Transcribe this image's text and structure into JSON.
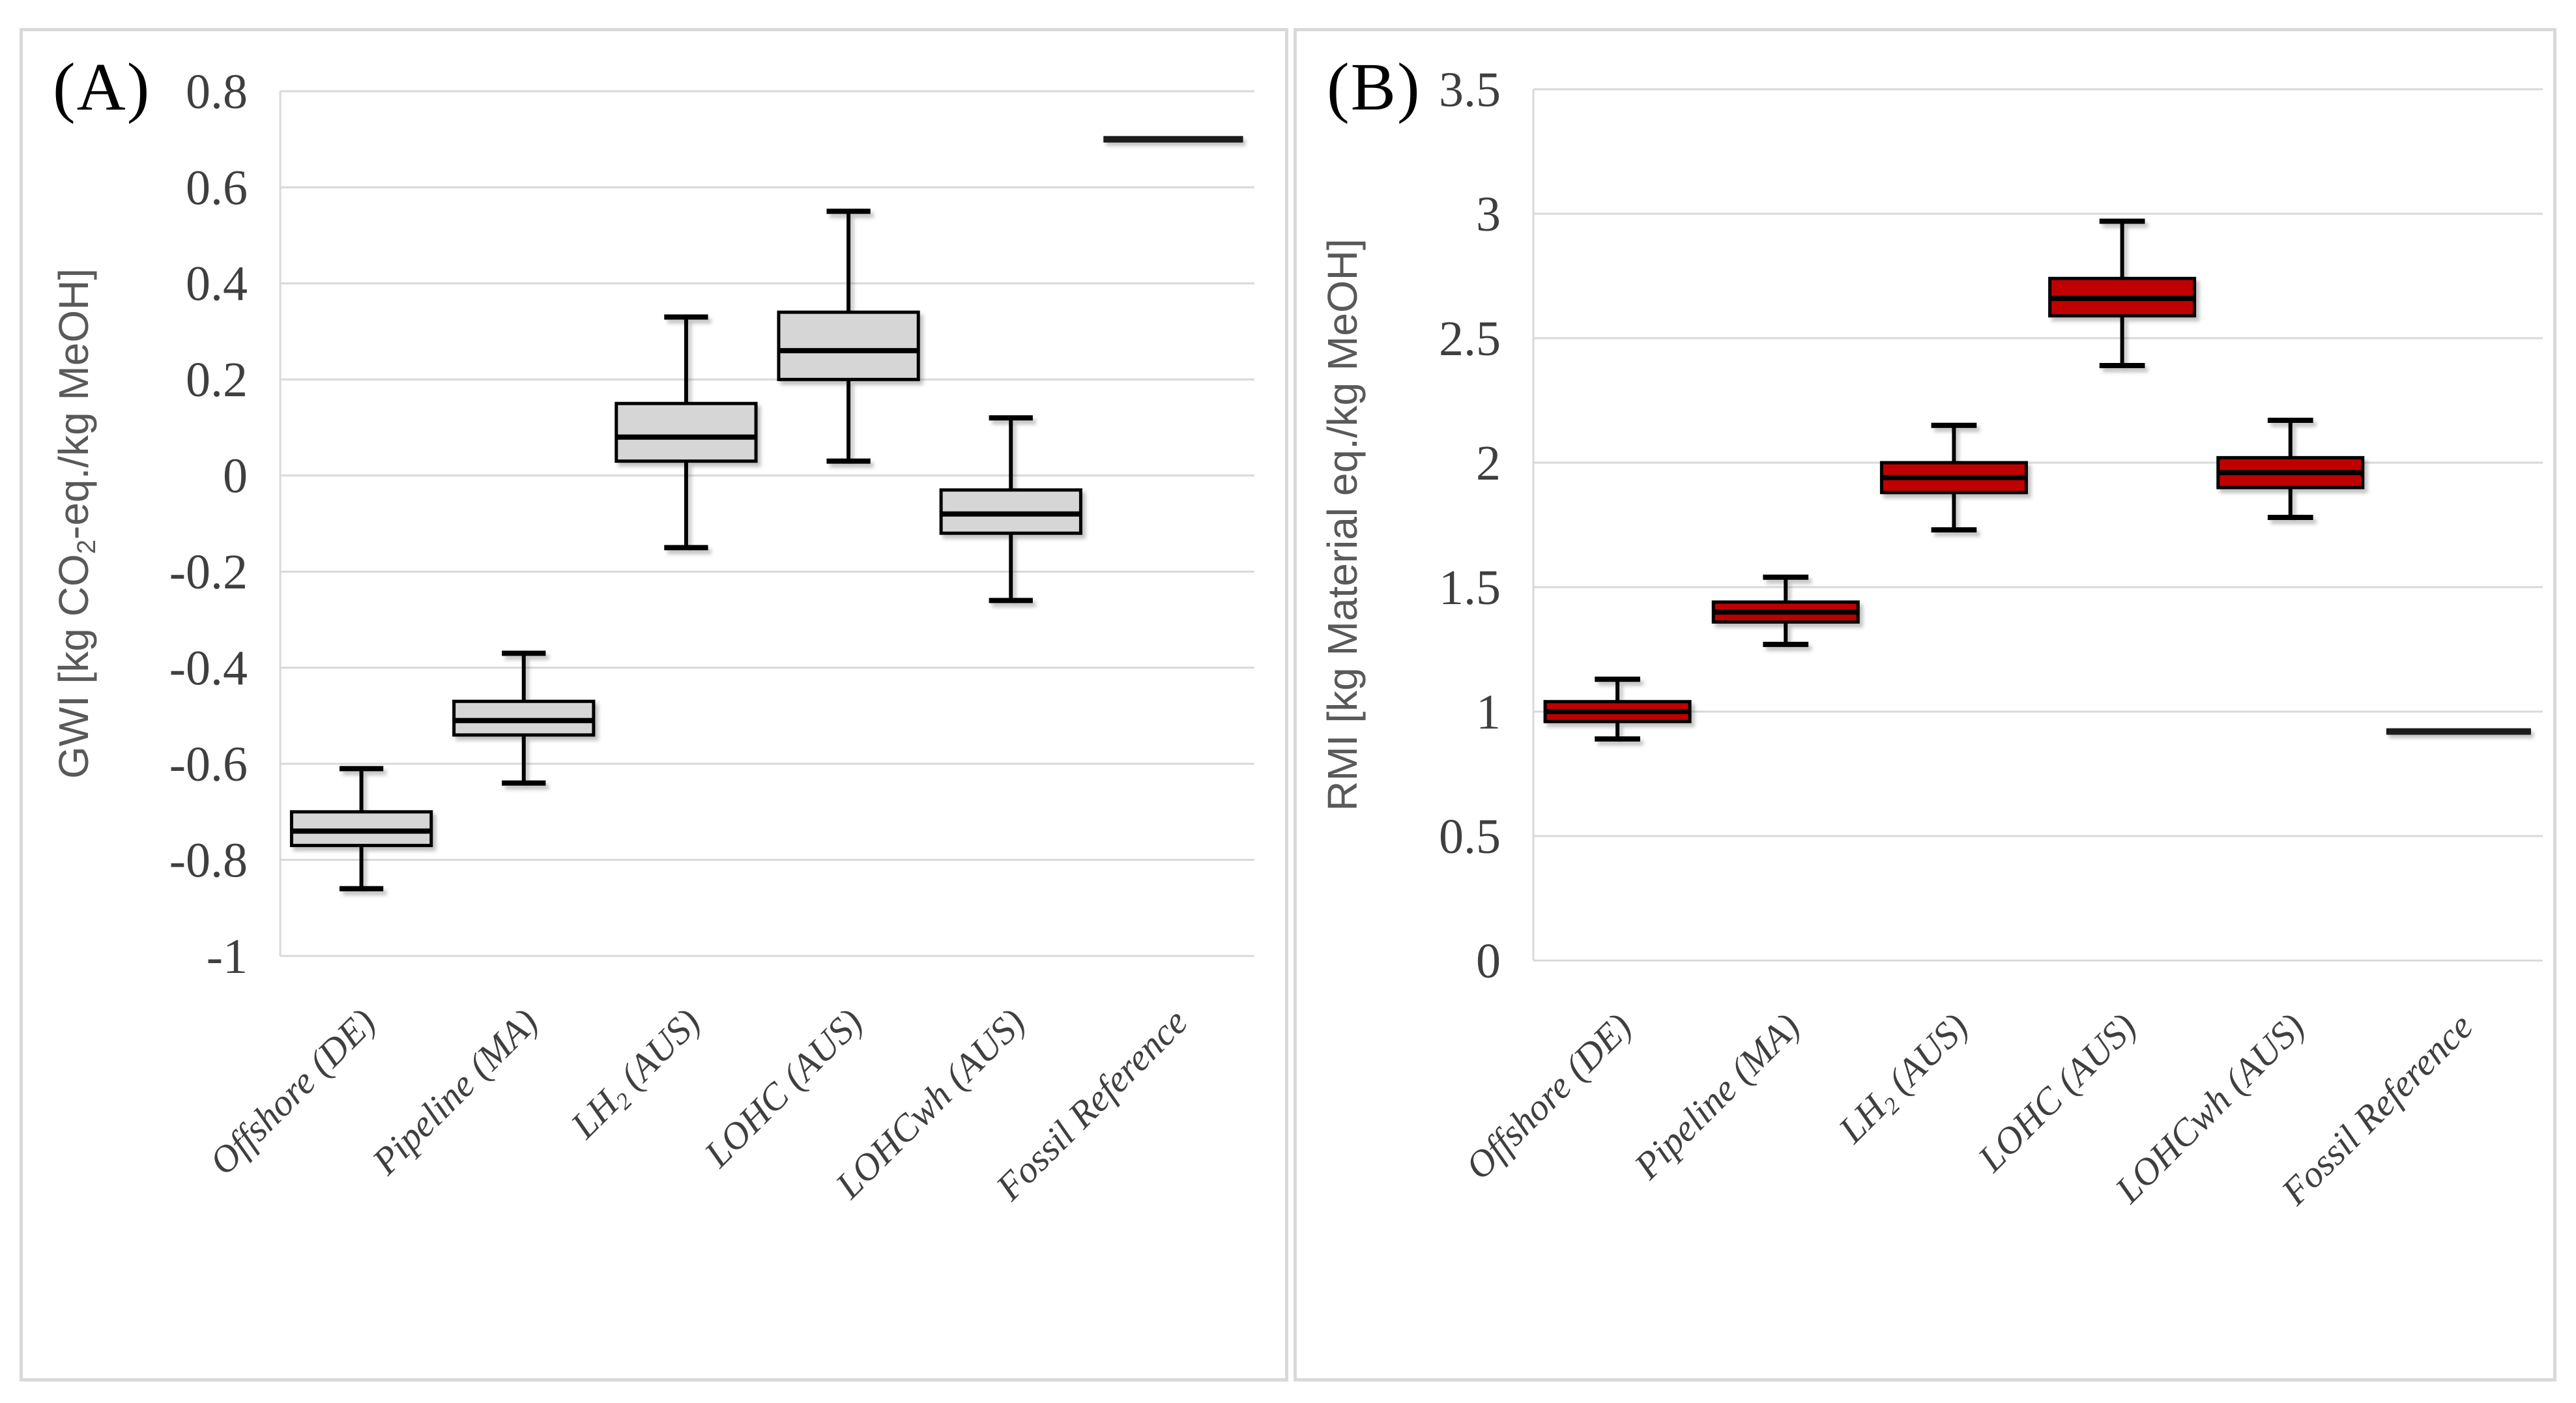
{
  "colors": {
    "background": "#ffffff",
    "panel_border": "#d9d9d9",
    "gridline": "#d9d9d9",
    "box_border": "#000000",
    "whisker": "#000000",
    "tick_text": "#3f3f3f",
    "axis_title_text": "#595959",
    "reference_line": "#1c1c1c",
    "panel_label_text": "#000000"
  },
  "chart_data": [
    {
      "type": "box",
      "panel_label": "(A)",
      "ylabel": "GWI [kg CO₂-eq./kg MeOH]",
      "ylim": [
        -1,
        0.8
      ],
      "ytick_step": 0.2,
      "ytick_labels": [
        "0.8",
        "0.6",
        "0.4",
        "0.2",
        "0",
        "-0.2",
        "-0.4",
        "-0.6",
        "-0.8",
        "-1"
      ],
      "grid": true,
      "legend": "none",
      "box_fill": "#d6d6d6",
      "categories": [
        "Offshore (DE)",
        "Pipeline (MA)",
        "LH₂ (AUS)",
        "LOHC (AUS)",
        "LOHCwh (AUS)",
        "Fossil Reference"
      ],
      "boxes": [
        {
          "category": "Offshore (DE)",
          "whisker_low": -0.86,
          "q1": -0.77,
          "median": -0.74,
          "q3": -0.7,
          "whisker_high": -0.61
        },
        {
          "category": "Pipeline (MA)",
          "whisker_low": -0.64,
          "q1": -0.54,
          "median": -0.51,
          "q3": -0.47,
          "whisker_high": -0.37
        },
        {
          "category": "LH₂ (AUS)",
          "whisker_low": -0.15,
          "q1": 0.03,
          "median": 0.08,
          "q3": 0.15,
          "whisker_high": 0.33
        },
        {
          "category": "LOHC (AUS)",
          "whisker_low": 0.03,
          "q1": 0.2,
          "median": 0.26,
          "q3": 0.34,
          "whisker_high": 0.55
        },
        {
          "category": "LOHCwh (AUS)",
          "whisker_low": -0.26,
          "q1": -0.12,
          "median": -0.08,
          "q3": -0.03,
          "whisker_high": 0.12
        },
        {
          "category": "Fossil Reference",
          "reference_value": 0.7
        }
      ]
    },
    {
      "type": "box",
      "panel_label": "(B)",
      "ylabel": "RMI [kg Material eq./kg MeOH]",
      "ylim": [
        0,
        3.5
      ],
      "ytick_step": 0.5,
      "ytick_labels": [
        "3.5",
        "3",
        "2.5",
        "2",
        "1.5",
        "1",
        "0.5",
        "0"
      ],
      "grid": true,
      "legend": "none",
      "box_fill": "#c00000",
      "categories": [
        "Offshore (DE)",
        "Pipeline (MA)",
        "LH₂ (AUS)",
        "LOHC (AUS)",
        "LOHCwh (AUS)",
        "Fossil Reference"
      ],
      "boxes": [
        {
          "category": "Offshore (DE)",
          "whisker_low": 0.89,
          "q1": 0.96,
          "median": 1.0,
          "q3": 1.04,
          "whisker_high": 1.13
        },
        {
          "category": "Pipeline (MA)",
          "whisker_low": 1.27,
          "q1": 1.36,
          "median": 1.4,
          "q3": 1.44,
          "whisker_high": 1.54
        },
        {
          "category": "LH₂ (AUS)",
          "whisker_low": 1.73,
          "q1": 1.88,
          "median": 1.94,
          "q3": 2.0,
          "whisker_high": 2.15
        },
        {
          "category": "LOHC (AUS)",
          "whisker_low": 2.39,
          "q1": 2.59,
          "median": 2.66,
          "q3": 2.74,
          "whisker_high": 2.97
        },
        {
          "category": "LOHCwh (AUS)",
          "whisker_low": 1.78,
          "q1": 1.9,
          "median": 1.96,
          "q3": 2.02,
          "whisker_high": 2.17
        },
        {
          "category": "Fossil Reference",
          "reference_value": 0.92
        }
      ]
    }
  ]
}
